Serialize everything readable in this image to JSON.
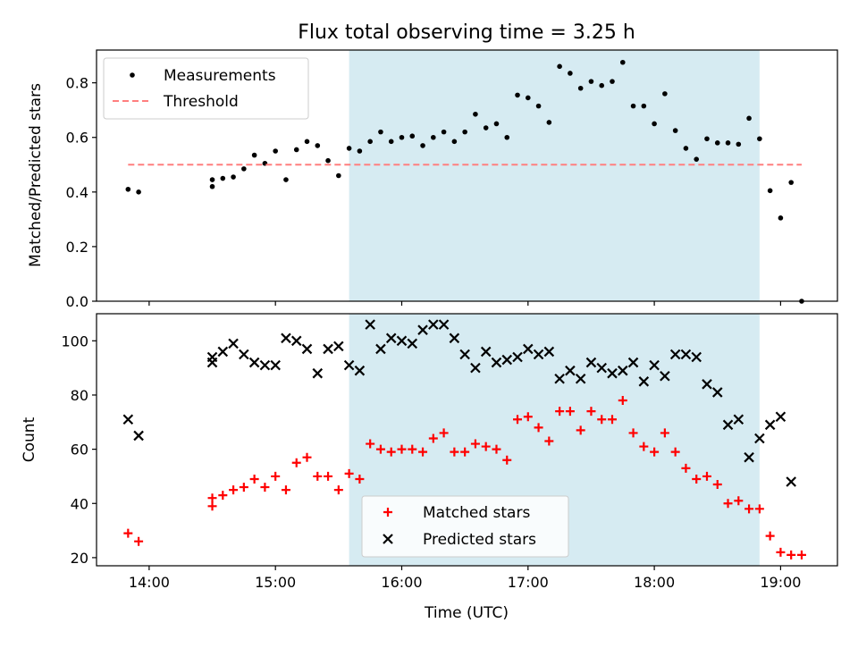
{
  "chart_data": [
    {
      "type": "scatter",
      "title": "Flux total observing time = 3.25 h",
      "xlabel": "",
      "ylabel": "Matched/Predicted stars",
      "xlim": [
        "13:35",
        "19:27"
      ],
      "ylim": [
        0,
        0.92
      ],
      "yticks": [
        0,
        0.2,
        0.4,
        0.6,
        0.8
      ],
      "ytick_labels": [
        "0.0",
        "0.2",
        "0.4",
        "0.6",
        "0.8"
      ],
      "xticks": [
        "14:00",
        "15:00",
        "16:00",
        "17:00",
        "18:00",
        "19:00"
      ],
      "xtick_labels_shown": false,
      "shaded_span": [
        "15:35",
        "18:50"
      ],
      "legend_position": "upper left",
      "series": [
        {
          "name": "Measurements",
          "marker": "dot",
          "color": "#000000",
          "points": [
            [
              "13:50",
              0.41
            ],
            [
              "13:55",
              0.4
            ],
            [
              "14:30",
              0.445
            ],
            [
              "14:30",
              0.42
            ],
            [
              "14:35",
              0.45
            ],
            [
              "14:40",
              0.455
            ],
            [
              "14:45",
              0.485
            ],
            [
              "14:50",
              0.535
            ],
            [
              "14:55",
              0.505
            ],
            [
              "15:00",
              0.55
            ],
            [
              "15:05",
              0.445
            ],
            [
              "15:10",
              0.555
            ],
            [
              "15:15",
              0.585
            ],
            [
              "15:20",
              0.57
            ],
            [
              "15:25",
              0.515
            ],
            [
              "15:30",
              0.46
            ],
            [
              "15:35",
              0.56
            ],
            [
              "15:40",
              0.55
            ],
            [
              "15:45",
              0.585
            ],
            [
              "15:50",
              0.62
            ],
            [
              "15:55",
              0.585
            ],
            [
              "16:00",
              0.6
            ],
            [
              "16:05",
              0.605
            ],
            [
              "16:10",
              0.57
            ],
            [
              "16:15",
              0.6
            ],
            [
              "16:20",
              0.62
            ],
            [
              "16:25",
              0.585
            ],
            [
              "16:30",
              0.62
            ],
            [
              "16:35",
              0.685
            ],
            [
              "16:40",
              0.635
            ],
            [
              "16:45",
              0.65
            ],
            [
              "16:50",
              0.6
            ],
            [
              "16:55",
              0.755
            ],
            [
              "17:00",
              0.745
            ],
            [
              "17:05",
              0.715
            ],
            [
              "17:10",
              0.655
            ],
            [
              "17:15",
              0.86
            ],
            [
              "17:20",
              0.835
            ],
            [
              "17:25",
              0.78
            ],
            [
              "17:30",
              0.805
            ],
            [
              "17:35",
              0.79
            ],
            [
              "17:40",
              0.805
            ],
            [
              "17:45",
              0.875
            ],
            [
              "17:50",
              0.715
            ],
            [
              "17:55",
              0.715
            ],
            [
              "18:00",
              0.65
            ],
            [
              "18:05",
              0.76
            ],
            [
              "18:10",
              0.625
            ],
            [
              "18:15",
              0.56
            ],
            [
              "18:20",
              0.52
            ],
            [
              "18:25",
              0.595
            ],
            [
              "18:30",
              0.58
            ],
            [
              "18:35",
              0.58
            ],
            [
              "18:40",
              0.575
            ],
            [
              "18:45",
              0.67
            ],
            [
              "18:50",
              0.595
            ],
            [
              "18:55",
              0.405
            ],
            [
              "19:00",
              0.305
            ],
            [
              "19:05",
              0.435
            ],
            [
              "19:10",
              0.0
            ]
          ]
        },
        {
          "name": "Threshold",
          "style": "dashed-line",
          "color": "#ff7f7f",
          "points": [
            [
              "13:50",
              0.5
            ],
            [
              "19:10",
              0.5
            ]
          ]
        }
      ]
    },
    {
      "type": "scatter",
      "title": "",
      "xlabel": "Time (UTC)",
      "ylabel": "Count",
      "xlim": [
        "13:35",
        "19:27"
      ],
      "ylim": [
        17,
        110
      ],
      "yticks": [
        20,
        40,
        60,
        80,
        100
      ],
      "ytick_labels": [
        "20",
        "40",
        "60",
        "80",
        "100"
      ],
      "xticks": [
        "14:00",
        "15:00",
        "16:00",
        "17:00",
        "18:00",
        "19:00"
      ],
      "xtick_labels": [
        "14:00",
        "15:00",
        "16:00",
        "17:00",
        "18:00",
        "19:00"
      ],
      "shaded_span": [
        "15:35",
        "18:50"
      ],
      "legend_position": "lower center",
      "series": [
        {
          "name": "Matched stars",
          "marker": "plus",
          "color": "#ff0000",
          "points": [
            [
              "13:50",
              29
            ],
            [
              "13:55",
              26
            ],
            [
              "14:30",
              42
            ],
            [
              "14:30",
              39
            ],
            [
              "14:35",
              43
            ],
            [
              "14:40",
              45
            ],
            [
              "14:45",
              46
            ],
            [
              "14:50",
              49
            ],
            [
              "14:55",
              46
            ],
            [
              "15:00",
              50
            ],
            [
              "15:05",
              45
            ],
            [
              "15:10",
              55
            ],
            [
              "15:15",
              57
            ],
            [
              "15:20",
              50
            ],
            [
              "15:25",
              50
            ],
            [
              "15:30",
              45
            ],
            [
              "15:35",
              51
            ],
            [
              "15:40",
              49
            ],
            [
              "15:45",
              62
            ],
            [
              "15:50",
              60
            ],
            [
              "15:55",
              59
            ],
            [
              "16:00",
              60
            ],
            [
              "16:05",
              60
            ],
            [
              "16:10",
              59
            ],
            [
              "16:15",
              64
            ],
            [
              "16:20",
              66
            ],
            [
              "16:25",
              59
            ],
            [
              "16:30",
              59
            ],
            [
              "16:35",
              62
            ],
            [
              "16:40",
              61
            ],
            [
              "16:45",
              60
            ],
            [
              "16:50",
              56
            ],
            [
              "16:55",
              71
            ],
            [
              "17:00",
              72
            ],
            [
              "17:05",
              68
            ],
            [
              "17:10",
              63
            ],
            [
              "17:15",
              74
            ],
            [
              "17:20",
              74
            ],
            [
              "17:25",
              67
            ],
            [
              "17:30",
              74
            ],
            [
              "17:35",
              71
            ],
            [
              "17:40",
              71
            ],
            [
              "17:45",
              78
            ],
            [
              "17:50",
              66
            ],
            [
              "17:55",
              61
            ],
            [
              "18:00",
              59
            ],
            [
              "18:05",
              66
            ],
            [
              "18:10",
              59
            ],
            [
              "18:15",
              53
            ],
            [
              "18:20",
              49
            ],
            [
              "18:25",
              50
            ],
            [
              "18:30",
              47
            ],
            [
              "18:35",
              40
            ],
            [
              "18:40",
              41
            ],
            [
              "18:45",
              38
            ],
            [
              "18:50",
              38
            ],
            [
              "18:55",
              28
            ],
            [
              "19:00",
              22
            ],
            [
              "19:05",
              21
            ],
            [
              "19:10",
              21
            ]
          ]
        },
        {
          "name": "Predicted stars",
          "marker": "x",
          "color": "#000000",
          "points": [
            [
              "13:50",
              71
            ],
            [
              "13:55",
              65
            ],
            [
              "14:30",
              94
            ],
            [
              "14:30",
              92
            ],
            [
              "14:35",
              96
            ],
            [
              "14:40",
              99
            ],
            [
              "14:45",
              95
            ],
            [
              "14:50",
              92
            ],
            [
              "14:55",
              91
            ],
            [
              "15:00",
              91
            ],
            [
              "15:05",
              101
            ],
            [
              "15:10",
              100
            ],
            [
              "15:15",
              97
            ],
            [
              "15:20",
              88
            ],
            [
              "15:25",
              97
            ],
            [
              "15:30",
              98
            ],
            [
              "15:35",
              91
            ],
            [
              "15:40",
              89
            ],
            [
              "15:45",
              106
            ],
            [
              "15:50",
              97
            ],
            [
              "15:55",
              101
            ],
            [
              "16:00",
              100
            ],
            [
              "16:05",
              99
            ],
            [
              "16:10",
              104
            ],
            [
              "16:15",
              106
            ],
            [
              "16:20",
              106
            ],
            [
              "16:25",
              101
            ],
            [
              "16:30",
              95
            ],
            [
              "16:35",
              90
            ],
            [
              "16:40",
              96
            ],
            [
              "16:45",
              92
            ],
            [
              "16:50",
              93
            ],
            [
              "16:55",
              94
            ],
            [
              "17:00",
              97
            ],
            [
              "17:05",
              95
            ],
            [
              "17:10",
              96
            ],
            [
              "17:15",
              86
            ],
            [
              "17:20",
              89
            ],
            [
              "17:25",
              86
            ],
            [
              "17:30",
              92
            ],
            [
              "17:35",
              90
            ],
            [
              "17:40",
              88
            ],
            [
              "17:45",
              89
            ],
            [
              "17:50",
              92
            ],
            [
              "17:55",
              85
            ],
            [
              "18:00",
              91
            ],
            [
              "18:05",
              87
            ],
            [
              "18:10",
              95
            ],
            [
              "18:15",
              95
            ],
            [
              "18:20",
              94
            ],
            [
              "18:25",
              84
            ],
            [
              "18:30",
              81
            ],
            [
              "18:35",
              69
            ],
            [
              "18:40",
              71
            ],
            [
              "18:45",
              57
            ],
            [
              "18:50",
              64
            ],
            [
              "18:55",
              69
            ],
            [
              "19:00",
              72
            ],
            [
              "19:05",
              48
            ]
          ]
        }
      ]
    }
  ]
}
